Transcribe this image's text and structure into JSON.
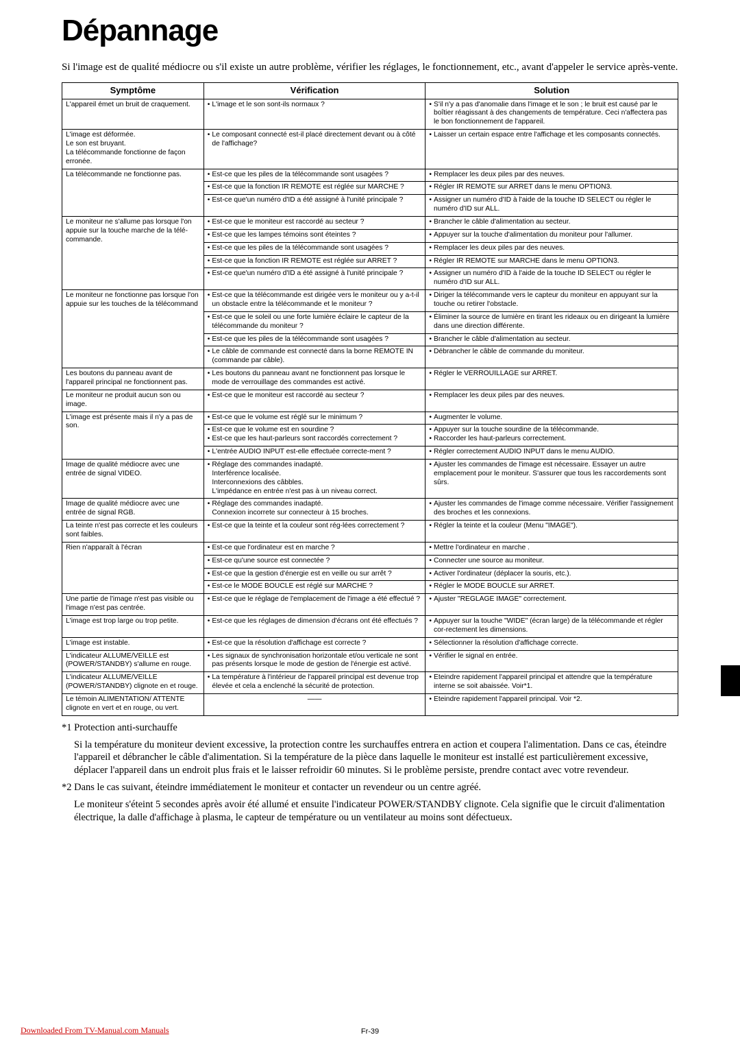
{
  "title": "Dépannage",
  "intro": "Si l'image est de qualité médiocre ou s'il existe un autre problème, vérifier les réglages, le fonctionnement, etc., avant d'appeler le service après-vente.",
  "headers": {
    "sym": "Symptôme",
    "ver": "Vérification",
    "sol": "Solution"
  },
  "rows": [
    {
      "sym": "L'appareil émet un bruit de craquement.",
      "ver": [
        "• L'image et le son sont-ils normaux ?"
      ],
      "sol": [
        "• S'il n'y a pas d'anomalie dans l'image et le son ; le bruit est causé par le boîtier réagissant à des changements de température. Ceci n'affectera pas le bon fonctionnement de l'appareil."
      ]
    },
    {
      "sym": "L'image est déformée.\nLe son est bruyant.\nLa télécommande fonctionne de façon erronée.",
      "ver": [
        "• Le composant connecté est-il placé directement devant ou à côté de l'affichage?"
      ],
      "sol": [
        "• Laisser un certain espace entre l'affichage et les composants connectés."
      ]
    },
    {
      "sym": "La télécommande ne fonctionne pas.",
      "symspan": 3,
      "ver": [
        "• Est-ce que les piles de la télécommande sont usagées ?"
      ],
      "sol": [
        "• Remplacer les deux piles par des neuves."
      ]
    },
    {
      "ver": [
        "• Est-ce que la fonction IR REMOTE est réglée sur MARCHE ?"
      ],
      "sol": [
        "• Régler IR REMOTE sur ARRET dans le menu OPTION3."
      ]
    },
    {
      "ver": [
        "• Est-ce que'un numéro d'ID a été assigné à l'unité principale ?"
      ],
      "sol": [
        "• Assigner un numéro d'ID à l'aide de la touche ID SELECT ou régler le numéro d'ID sur ALL."
      ]
    },
    {
      "sym": "Le moniteur ne s'allume pas lorsque l'on appuie sur la touche marche de la télé-commande.",
      "symspan": 5,
      "ver": [
        "• Est-ce que le moniteur est raccordé au secteur ?"
      ],
      "sol": [
        "• Brancher le câble d'alimentation au secteur."
      ]
    },
    {
      "ver": [
        "• Est-ce que les lampes témoins sont éteintes ?"
      ],
      "sol": [
        "• Appuyer sur la touche d'alimentation du moniteur pour l'allumer."
      ]
    },
    {
      "ver": [
        "• Est-ce que les piles de la télécommande sont usagées ?"
      ],
      "sol": [
        "• Remplacer les deux piles par des neuves."
      ]
    },
    {
      "ver": [
        "• Est-ce que la fonction IR REMOTE est réglée sur ARRET ?"
      ],
      "sol": [
        "• Régler IR REMOTE sur MARCHE dans le menu OPTION3."
      ]
    },
    {
      "ver": [
        "• Est-ce que'un numéro d'ID a été assigné à l'unité principale ?"
      ],
      "sol": [
        "• Assigner un numéro d'ID à l'aide de la touche ID SELECT ou régler le numéro d'ID sur ALL."
      ]
    },
    {
      "sym": "Le moniteur ne fonctionne pas lorsque l'on appuie sur les touches de la télécommand",
      "symspan": 4,
      "ver": [
        "• Est-ce que la télécommande est dirigée vers le moniteur ou y a-t-il un obstacle entre la télécommande et le moniteur ?"
      ],
      "sol": [
        "• Diriger la télécommande vers le capteur du moniteur en appuyant sur la touche ou retirer l'obstacle."
      ]
    },
    {
      "ver": [
        "• Est-ce que le soleil ou une forte lumière éclaire le capteur de la télécommande du moniteur ?"
      ],
      "sol": [
        "• Éliminer la source de lumière en tirant les rideaux ou en dirigeant la lumière dans une direction différente."
      ]
    },
    {
      "ver": [
        "• Est-ce que les piles de la télécommande sont usagées ?"
      ],
      "sol": [
        "• Brancher le câble d'alimentation au secteur."
      ]
    },
    {
      "ver": [
        "• Le câble de commande est connecté dans la borne REMOTE IN (commande par câble)."
      ],
      "sol": [
        "• Débrancher le câble de commande du moniteur."
      ]
    },
    {
      "sym": "Les boutons du panneau avant de l'appareil principal ne fonctionnent pas.",
      "ver": [
        "• Les boutons du panneau avant ne fonctionnent pas lorsque le mode de verrouillage des commandes est activé."
      ],
      "sol": [
        "• Régler le VERROUILLAGE sur ARRET."
      ]
    },
    {
      "sym": "Le moniteur ne produit aucun son ou image.",
      "ver": [
        "• Est-ce que le moniteur est raccordé au secteur ?"
      ],
      "sol": [
        "• Remplacer les deux piles par des neuves."
      ]
    },
    {
      "sym": "L'image est présente mais il n'y a pas de son.",
      "symspan": 3,
      "ver": [
        "• Est-ce que le volume est réglé sur le minimum ?"
      ],
      "sol": [
        "• Augmenter le volume."
      ]
    },
    {
      "ver": [
        "• Est-ce que le volume est en sourdine ?",
        "• Est-ce que les haut-parleurs sont raccordés correctement ?"
      ],
      "sol": [
        "• Appuyer sur la touche sourdine de la télécommande.",
        "• Raccorder les haut-parleurs correctement."
      ]
    },
    {
      "ver": [
        "• L'entrée AUDIO INPUT est-elle effectuée correcte-ment ?"
      ],
      "sol": [
        "• Régler correctement AUDIO INPUT dans le menu AUDIO."
      ]
    },
    {
      "sym": "Image de qualité médiocre avec une entrée de signal VIDEO.",
      "ver": [
        "• Réglage des commandes inadapté.\nInterférence localisée.\nInterconnexions des câbbles.\nL'impédance en entrée n'est pas à un niveau correct."
      ],
      "sol": [
        "• Ajuster les commandes de l'image est nécessaire. Essayer un autre emplacement pour le moniteur. S'assurer que tous les raccordements sont sûrs."
      ]
    },
    {
      "sym": "Image de qualité médiocre avec une entrée de signal RGB.",
      "ver": [
        "• Réglage des commandes inadapté.\nConnexion incorrete sur connecteur à 15 broches."
      ],
      "sol": [
        "• Ajuster les commandes de l'image comme nécessaire. Vérifier l'assignement des broches et les connexions."
      ]
    },
    {
      "sym": "La teinte n'est pas correcte et les couleurs sont faibles.",
      "ver": [
        "• Est-ce que la teinte et la couleur sont rég-lées correctement ?"
      ],
      "sol": [
        "• Régler la teinte et la couleur (Menu \"IMAGE\")."
      ]
    },
    {
      "sym": "Rien n'apparaît à l'écran",
      "symspan": 4,
      "ver": [
        "• Est-ce que l'ordinateur est en marche ?"
      ],
      "sol": [
        "• Mettre l'ordinateur en marche ."
      ]
    },
    {
      "ver": [
        "• Est-ce qu'une source est connectée ?"
      ],
      "sol": [
        "• Connecter une source au moniteur."
      ]
    },
    {
      "ver": [
        "• Est-ce que la gestion d'énergie est en veille ou sur arrêt ?"
      ],
      "sol": [
        "• Activer l'ordinateur (déplacer la souris, etc.)."
      ]
    },
    {
      "ver": [
        "• Est-ce  le MODE BOUCLE est réglé sur MARCHE ?"
      ],
      "sol": [
        "• Régler le MODE BOUCLE sur ARRET."
      ]
    },
    {
      "sym": "Une partie de l'image n'est pas visible ou l'image n'est pas centrée.",
      "ver": [
        "• Est-ce que le réglage de l'emplacement de l'image a été effectué ?"
      ],
      "sol": [
        "• Ajuster \"REGLAGE IMAGE\" correctement."
      ]
    },
    {
      "sym": "L'image est trop large ou trop petite.",
      "ver": [
        "• Est-ce que les réglages de dimension d'écrans ont été effectués ?"
      ],
      "sol": [
        "• Appuyer sur la touche \"WIDE\" (écran large) de la télécommande et régler cor-rectement les dimensions."
      ]
    },
    {
      "sym": "L'image est instable.",
      "ver": [
        "• Est-ce que la résolution d'affichage est correcte ?"
      ],
      "sol": [
        "• Sélectionner la résolution d'affichage correcte."
      ]
    },
    {
      "sym": "L'indicateur ALLUME/VEILLE est (POWER/STANDBY) s'allume en rouge.",
      "ver": [
        "• Les signaux de synchronisation horizontale et/ou verticale ne sont pas présents lorsque le mode de gestion de l'énergie est activé."
      ],
      "sol": [
        "• Vérifier le signal en entrée."
      ]
    },
    {
      "sym": "L'indicateur ALLUME/VEILLE (POWER/STANDBY) clignote en et rouge.",
      "ver": [
        "• La température à l'intérieur de l'appareil principal est devenue trop élevée et cela a enclenché la sécurité de protection."
      ],
      "sol": [
        "• Eteindre rapidement l'appareil principal et attendre que la température interne se soit abaissée. Voir*1."
      ]
    },
    {
      "sym": "Le témoin ALIMENTATION/ ATTENTE clignote en vert et en rouge, ou vert.",
      "ver": [
        "——"
      ],
      "dash": true,
      "sol": [
        "• Eteindre rapidement l'appareil principal. Voir *2."
      ]
    }
  ],
  "notes": [
    {
      "head": "*1 Protection anti-surchauffe",
      "body": "Si la température du moniteur devient excessive, la protection contre les surchauffes entrera en action et coupera l'alimentation. Dans ce cas, éteindre l'appareil et débrancher le câble d'alimentation. Si la température de la pièce dans laquelle le moniteur est installé est particulièrement excessive, déplacer l'appareil dans un endroit plus frais et le laisser refroidir 60 minutes. Si le problème persiste, prendre contact avec votre revendeur."
    },
    {
      "head": "*2 Dans le cas suivant, éteindre immédiatement le moniteur et contacter un revendeur ou un centre agréé.",
      "body": "Le moniteur s'éteint 5 secondes après avoir été allumé et ensuite l'indicateur POWER/STANDBY clignote. Cela signifie que le circuit d'alimentation électrique, la dalle d'affichage à plasma, le capteur de température ou un ventilateur au moins sont défectueux."
    }
  ],
  "footer_link": "Downloaded From TV-Manual.com Manuals",
  "page_num": "Fr-39"
}
